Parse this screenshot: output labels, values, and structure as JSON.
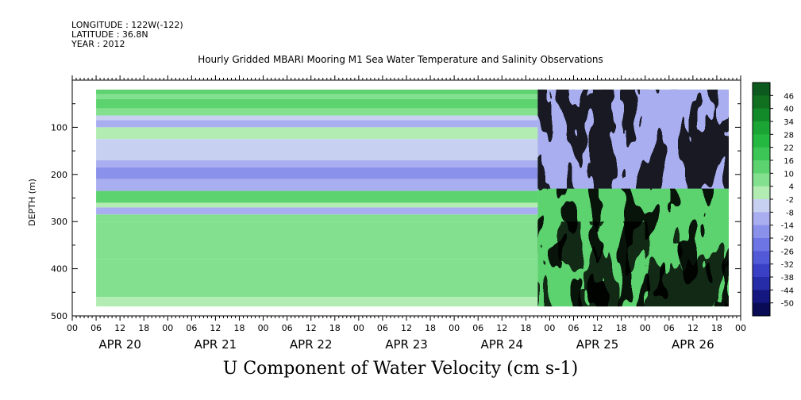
{
  "header": {
    "longitude": "LONGITUDE : 122W(-122)",
    "latitude": "LATITUDE : 36.8N",
    "year": "YEAR : 2012"
  },
  "chart_data": {
    "type": "heatmap",
    "title": "Hourly Gridded MBARI Mooring M1 Sea Water Temperature and Salinity Observations",
    "xlabel": "U Component of Water Velocity (cm s-1)",
    "ylabel": "DEPTH (m)",
    "ylim": [
      500,
      0
    ],
    "y_ticks": [
      100,
      200,
      300,
      400,
      500
    ],
    "x_hour_ticks": [
      "00",
      "06",
      "12",
      "18",
      "00",
      "06",
      "12",
      "18",
      "00",
      "06",
      "12",
      "18",
      "00",
      "06",
      "12",
      "18",
      "00",
      "06",
      "12",
      "18",
      "00",
      "06",
      "12",
      "18",
      "00",
      "06",
      "12",
      "18",
      "00"
    ],
    "x_day_labels": [
      "APR 20",
      "APR 21",
      "APR 22",
      "APR 23",
      "APR 24",
      "APR 25",
      "APR 26"
    ],
    "data_start": "APR 20 06",
    "data_end": "APR 26 21",
    "data_depth_range": [
      20,
      480
    ],
    "colorbar_levels": [
      "46",
      "40",
      "34",
      "28",
      "22",
      "16",
      "10",
      "4",
      "-2",
      "-8",
      "-14",
      "-20",
      "-26",
      "-32",
      "-38",
      "-44",
      "-50"
    ],
    "colorbar_colors": [
      "#0d5a1e",
      "#10701f",
      "#138a2a",
      "#1aa534",
      "#25b840",
      "#3cc656",
      "#5cd36e",
      "#82e08e",
      "#b3ecb3",
      "#c8d0f2",
      "#a9aef0",
      "#8a91ea",
      "#6d75e4",
      "#525ad8",
      "#3a40c6",
      "#262ba8",
      "#14177f",
      "#090c55"
    ],
    "depth_profile_u_before_apr24_21": [
      {
        "depth": [
          20,
          30
        ],
        "u": 15
      },
      {
        "depth": [
          30,
          40
        ],
        "u": 8
      },
      {
        "depth": [
          40,
          60
        ],
        "u": 12
      },
      {
        "depth": [
          60,
          75
        ],
        "u": 6
      },
      {
        "depth": [
          75,
          85
        ],
        "u": -4
      },
      {
        "depth": [
          85,
          100
        ],
        "u": -10
      },
      {
        "depth": [
          100,
          125
        ],
        "u": 3
      },
      {
        "depth": [
          125,
          170
        ],
        "u": -8
      },
      {
        "depth": [
          170,
          185
        ],
        "u": -12
      },
      {
        "depth": [
          185,
          210
        ],
        "u": -18
      },
      {
        "depth": [
          210,
          235
        ],
        "u": -10
      },
      {
        "depth": [
          235,
          260
        ],
        "u": 10
      },
      {
        "depth": [
          260,
          270
        ],
        "u": 3
      },
      {
        "depth": [
          270,
          285
        ],
        "u": -12
      },
      {
        "depth": [
          285,
          300
        ],
        "u": 4
      },
      {
        "depth": [
          300,
          340
        ],
        "u": 7
      },
      {
        "depth": [
          340,
          380
        ],
        "u": 4
      },
      {
        "depth": [
          380,
          420
        ],
        "u": 7
      },
      {
        "depth": [
          420,
          460
        ],
        "u": 5
      },
      {
        "depth": [
          460,
          480
        ],
        "u": 3
      }
    ]
  }
}
